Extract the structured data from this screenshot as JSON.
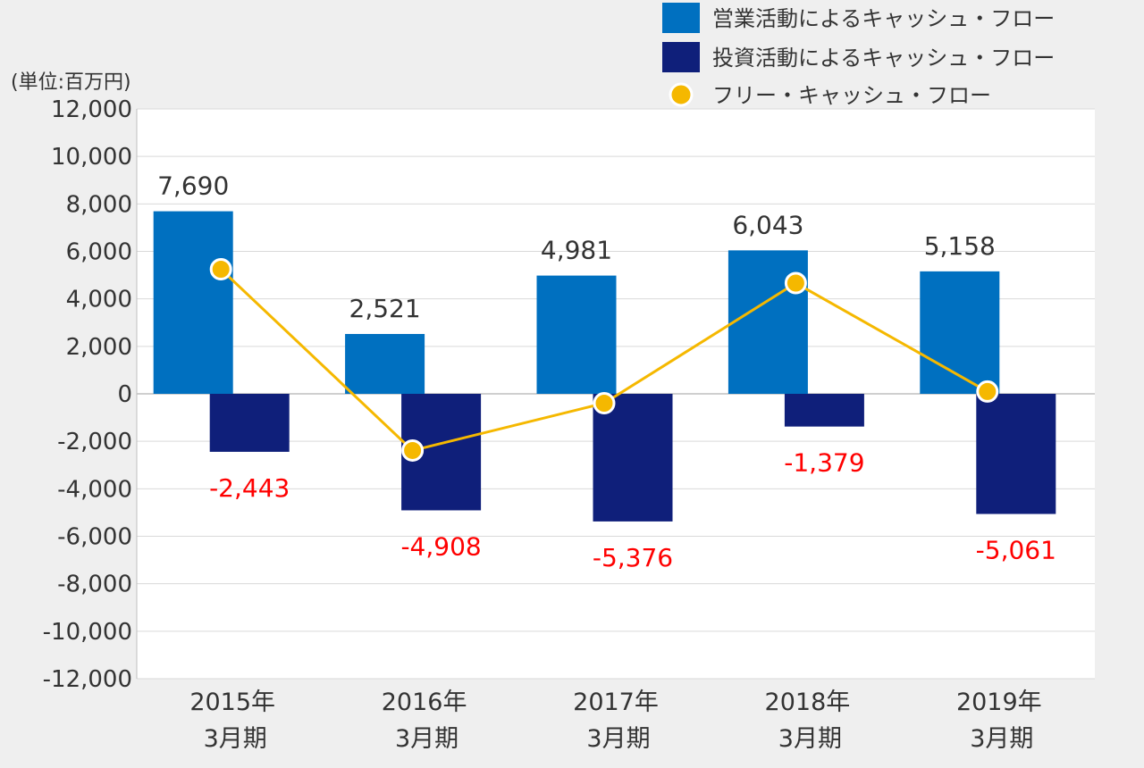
{
  "chart_data": {
    "type": "bar",
    "unit_label": "(単位:百万円)",
    "categories": [
      [
        "2015年",
        "3月期"
      ],
      [
        "2016年",
        "3月期"
      ],
      [
        "2017年",
        "3月期"
      ],
      [
        "2018年",
        "3月期"
      ],
      [
        "2019年",
        "3月期"
      ]
    ],
    "ylim": [
      -12000,
      12000
    ],
    "yticks": [
      12000,
      10000,
      8000,
      6000,
      4000,
      2000,
      0,
      -2000,
      -4000,
      -6000,
      -8000,
      -10000,
      -12000
    ],
    "ytick_labels": [
      "12,000",
      "10,000",
      "8,000",
      "6,000",
      "4,000",
      "2,000",
      "0",
      "-2,000",
      "-4,000",
      "-6,000",
      "-8,000",
      "-10,000",
      "-12,000"
    ],
    "grid": true,
    "legend_position": "top-right",
    "series": [
      {
        "name": "営業活動によるキャッシュ・フロー",
        "kind": "bar",
        "color": "#0070c0",
        "values": [
          7690,
          2521,
          4981,
          6043,
          5158
        ],
        "labels": [
          "7,690",
          "2,521",
          "4,981",
          "6,043",
          "5,158"
        ],
        "label_color": "#333333"
      },
      {
        "name": "投資活動によるキャッシュ・フロー",
        "kind": "bar",
        "color": "#0f1f7a",
        "values": [
          -2443,
          -4908,
          -5376,
          -1379,
          -5061
        ],
        "labels": [
          "-2,443",
          "-4,908",
          "-5,376",
          "-1,379",
          "-5,061"
        ],
        "label_color": "#ff0000"
      },
      {
        "name": "フリー・キャッシュ・フロー",
        "kind": "line",
        "color": "#f5b800",
        "values": [
          5247,
          -2387,
          -395,
          4664,
          97
        ]
      }
    ]
  }
}
